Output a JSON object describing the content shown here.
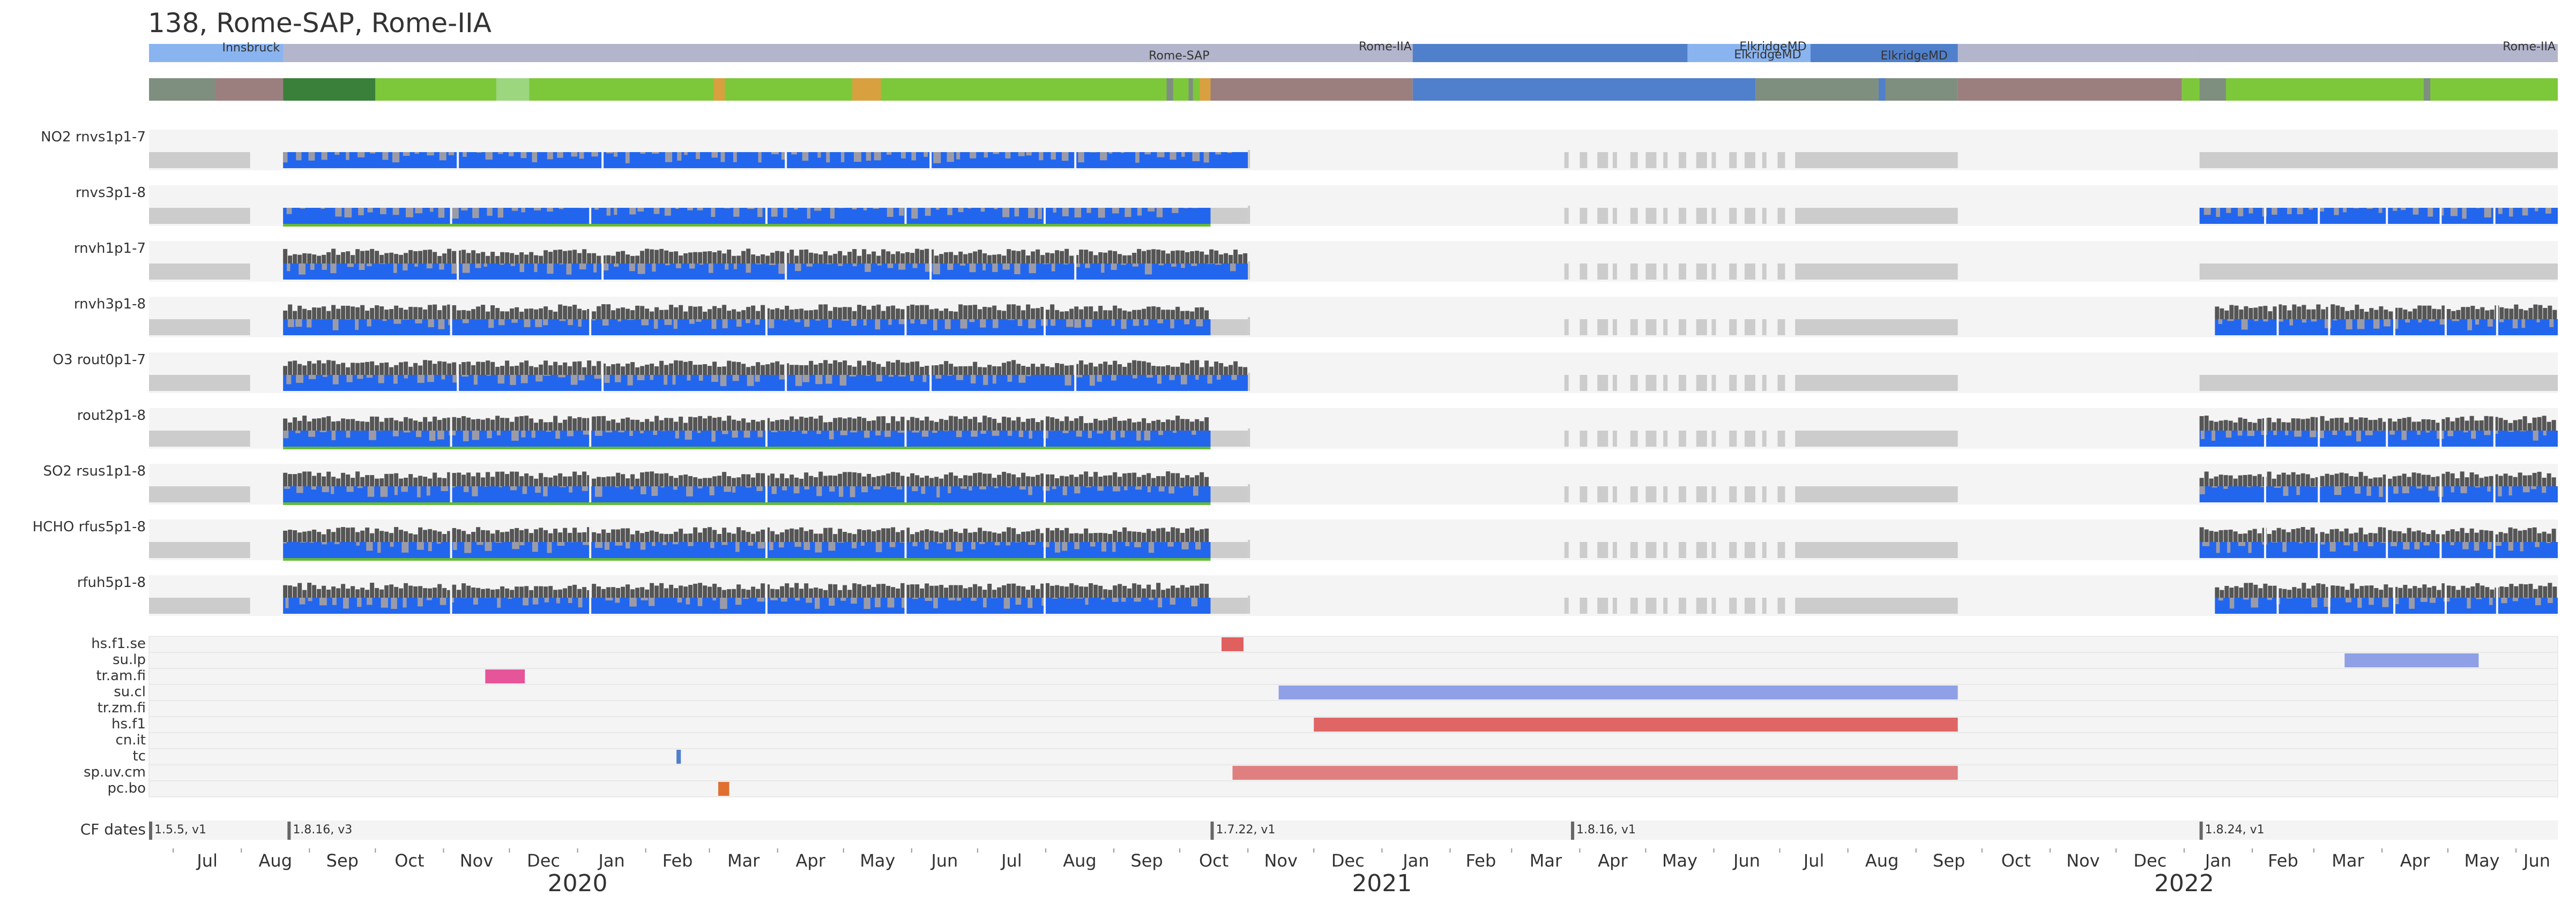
{
  "title": "138, Rome-SAP, Rome-IIA",
  "chart_data": {
    "type": "timeline",
    "x_range": [
      "2019-06-20",
      "2022-06-20"
    ],
    "month_labels": [
      "Jul",
      "Aug",
      "Sep",
      "Oct",
      "Nov",
      "Dec",
      "Jan",
      "Feb",
      "Mar",
      "Apr",
      "May",
      "Jun",
      "Jul",
      "Aug",
      "Sep",
      "Oct",
      "Nov",
      "Dec",
      "Jan",
      "Feb",
      "Mar",
      "Apr",
      "May",
      "Jun",
      "Jul",
      "Aug",
      "Sep",
      "Oct",
      "Nov",
      "Dec",
      "Jan",
      "Feb",
      "Mar",
      "Apr",
      "May",
      "Jun"
    ],
    "year_labels": [
      {
        "label": "2020",
        "date": "2020-01-01"
      },
      {
        "label": "2021",
        "date": "2021-01-01"
      },
      {
        "label": "2022",
        "date": "2022-01-01"
      }
    ],
    "locations": [
      {
        "label": "Innsbruck",
        "start": "2019-06-20",
        "end": "2019-08-20",
        "color": "#8ab4f0"
      },
      {
        "label": "Rome-SAP",
        "start": "2019-08-20",
        "end": "2020-10-15",
        "color": "#b3b5cc"
      },
      {
        "label": "Rome-IIA",
        "start": "2020-10-15",
        "end": "2021-01-15",
        "color": "#b3b5cc"
      },
      {
        "label": "ElkridgeMD",
        "start": "2021-01-15",
        "end": "2021-07-15",
        "color": "#5080cc"
      },
      {
        "label": "ElkridgeMD",
        "start": "2021-05-20",
        "end": "2021-09-05",
        "color": "#8ab4f0"
      },
      {
        "label": "ElkridgeMD",
        "start": "2021-07-15",
        "end": "2021-09-20",
        "color": "#5080cc"
      },
      {
        "label": "Rome-IIA",
        "start": "2022-01-08",
        "end": "2022-06-20",
        "color": "#b3b5cc"
      }
    ],
    "status_segments": [
      {
        "start": "2019-06-20",
        "end": "2019-07-20",
        "color": "#7f8f7f"
      },
      {
        "start": "2019-07-20",
        "end": "2019-08-20",
        "color": "#9b7f7f"
      },
      {
        "start": "2019-08-20",
        "end": "2019-10-01",
        "color": "#3a7f3a"
      },
      {
        "start": "2019-10-01",
        "end": "2020-10-15",
        "color": "#7dc83a"
      },
      {
        "start": "2020-10-15",
        "end": "2021-01-15",
        "color": "#9b7f7f"
      },
      {
        "start": "2021-01-15",
        "end": "2021-06-20",
        "color": "#5080cc"
      },
      {
        "start": "2021-06-20",
        "end": "2021-09-20",
        "color": "#7f8f7f"
      },
      {
        "start": "2021-09-20",
        "end": "2021-12-31",
        "color": "#9b7f7f"
      },
      {
        "start": "2021-12-31",
        "end": "2022-06-20",
        "color": "#7dc83a"
      }
    ],
    "instruments": [
      {
        "species": "NO2",
        "name": "rnvs1p1-7",
        "active": [
          [
            "2019-08-20",
            "2020-11-01"
          ]
        ],
        "flag_line": false,
        "top_bar": false
      },
      {
        "species": "",
        "name": "rnvs3p1-8",
        "active": [
          [
            "2019-08-20",
            "2020-10-15"
          ],
          [
            "2022-01-08",
            "2022-06-20"
          ]
        ],
        "flag_line": true,
        "top_bar": false
      },
      {
        "species": "",
        "name": "rnvh1p1-7",
        "active": [
          [
            "2019-08-20",
            "2020-11-01"
          ]
        ],
        "flag_line": false,
        "top_bar": true
      },
      {
        "species": "",
        "name": "rnvh3p1-8",
        "active": [
          [
            "2019-08-20",
            "2020-10-15"
          ],
          [
            "2022-01-15",
            "2022-06-20"
          ]
        ],
        "flag_line": false,
        "top_bar": true
      },
      {
        "species": "O3",
        "name": "rout0p1-7",
        "active": [
          [
            "2019-08-20",
            "2020-11-01"
          ]
        ],
        "flag_line": false,
        "top_bar": true
      },
      {
        "species": "",
        "name": "rout2p1-8",
        "active": [
          [
            "2019-08-20",
            "2020-10-15"
          ],
          [
            "2022-01-08",
            "2022-06-20"
          ]
        ],
        "flag_line": true,
        "top_bar": true
      },
      {
        "species": "SO2",
        "name": "rsus1p1-8",
        "active": [
          [
            "2019-08-20",
            "2020-10-15"
          ],
          [
            "2022-01-08",
            "2022-06-20"
          ]
        ],
        "flag_line": true,
        "top_bar": true
      },
      {
        "species": "HCHO",
        "name": "rfus5p1-8",
        "active": [
          [
            "2019-08-20",
            "2020-10-15"
          ],
          [
            "2022-01-08",
            "2022-06-20"
          ]
        ],
        "flag_line": true,
        "top_bar": true
      },
      {
        "species": "",
        "name": "rfuh5p1-8",
        "active": [
          [
            "2019-08-20",
            "2020-10-15"
          ],
          [
            "2022-01-15",
            "2022-06-20"
          ]
        ],
        "flag_line": false,
        "top_bar": true
      }
    ],
    "events": [
      {
        "name": "hs.f1.se",
        "spans": [
          {
            "start": "2020-10-20",
            "end": "2020-10-30",
            "color": "#e06060"
          }
        ]
      },
      {
        "name": "su.lp",
        "spans": [
          {
            "start": "2022-03-15",
            "end": "2022-05-15",
            "color": "#8fa0e6"
          }
        ]
      },
      {
        "name": "tr.am.fi",
        "spans": [
          {
            "start": "2019-11-20",
            "end": "2019-12-08",
            "color": "#e6549a"
          }
        ]
      },
      {
        "name": "su.cl",
        "spans": [
          {
            "start": "2020-11-15",
            "end": "2021-09-20",
            "color": "#8fa0e6"
          }
        ]
      },
      {
        "name": "tr.zm.fi",
        "spans": []
      },
      {
        "name": "hs.f1",
        "spans": [
          {
            "start": "2020-12-01",
            "end": "2021-09-20",
            "color": "#e06666"
          }
        ]
      },
      {
        "name": "cn.it",
        "spans": []
      },
      {
        "name": "tc",
        "spans": [
          {
            "start": "2020-02-15",
            "end": "2020-02-17",
            "color": "#5080cc"
          }
        ]
      },
      {
        "name": "sp.uv.cm",
        "spans": [
          {
            "start": "2020-10-25",
            "end": "2021-09-20",
            "color": "#e07f7f"
          }
        ]
      },
      {
        "name": "pc.bo",
        "spans": [
          {
            "start": "2020-03-05",
            "end": "2020-03-10",
            "color": "#e07030"
          }
        ]
      }
    ],
    "cf_label": "CF dates",
    "cf_dates": [
      {
        "date": "2019-06-20",
        "label": "1.5.5, v1"
      },
      {
        "date": "2019-08-22",
        "label": "1.8.16, v3"
      },
      {
        "date": "2020-10-15",
        "label": "1.7.22, v1"
      },
      {
        "date": "2021-03-28",
        "label": "1.8.16, v1"
      },
      {
        "date": "2022-01-08",
        "label": "1.8.24, v1"
      }
    ]
  }
}
